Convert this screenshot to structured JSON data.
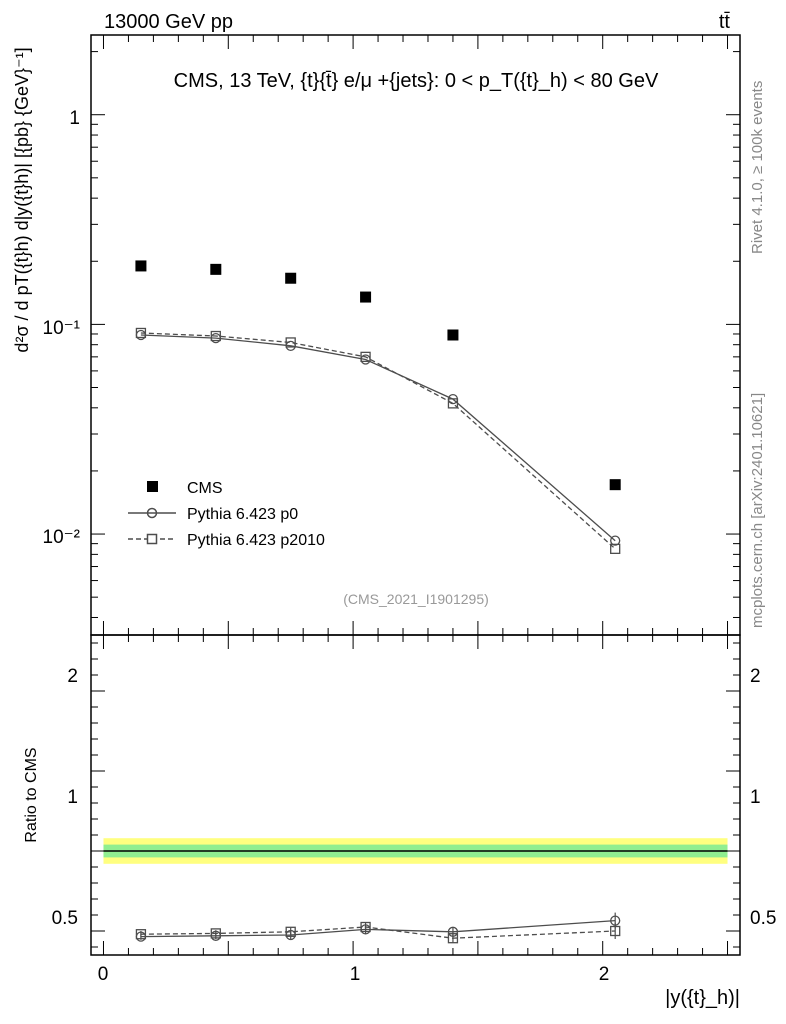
{
  "header": {
    "energy_label": "13000 GeV pp",
    "process_label": "tt̄"
  },
  "side_labels": {
    "rivet": "Rivet 4.1.0, ≥ 100k events",
    "mcplots": "mcplots.cern.ch [arXiv:2401.10621]"
  },
  "chart_data": [
    {
      "type": "scatter",
      "panel": "main",
      "title": "CMS, 13 TeV, {t}{t̄} e/μ +{jets}: 0 <  p_T({t}_h) < 80 GeV",
      "ylabel": "d²σ / d pT({t}h) d|y({t}h)| [{pb} {GeV}⁻¹]",
      "xlabel": "|y({t}_h)|",
      "yscale": "log",
      "xlim": [
        -0.05,
        2.55
      ],
      "ylim": [
        0.0033,
        2.4
      ],
      "y_ticks": [
        "1",
        "10⁻¹",
        "10⁻²"
      ],
      "watermark": "(CMS_2021_I1901295)",
      "legend_position": "bottom-left",
      "x": [
        0.15,
        0.45,
        0.75,
        1.05,
        1.4,
        2.05
      ],
      "series": [
        {
          "name": "CMS",
          "values": [
            0.19,
            0.183,
            0.166,
            0.135,
            0.089,
            0.0172
          ]
        },
        {
          "name": "Pythia 6.423 p0",
          "values": [
            0.089,
            0.086,
            0.079,
            0.068,
            0.044,
            0.0093
          ]
        },
        {
          "name": "Pythia 6.423 p2010",
          "values": [
            0.091,
            0.088,
            0.082,
            0.07,
            0.042,
            0.0085
          ]
        }
      ]
    },
    {
      "type": "line",
      "panel": "ratio",
      "ylabel": "Ratio to CMS",
      "xlabel": "|y({t}_h)|",
      "xlim": [
        -0.05,
        2.55
      ],
      "ylim": [
        0.35,
        2.35
      ],
      "x_ticks": [
        "0",
        "1",
        "2"
      ],
      "y_ticks": [
        "0.5",
        "1",
        "2"
      ],
      "x": [
        0.15,
        0.45,
        0.75,
        1.05,
        1.4,
        2.05
      ],
      "band": {
        "name": "CMS uncertainty",
        "inner": 0.04,
        "outer": 0.08
      },
      "series": [
        {
          "name": "Pythia 6.423 p0",
          "values": [
            0.465,
            0.47,
            0.475,
            0.51,
            0.495,
            0.565
          ]
        },
        {
          "name": "Pythia 6.423 p2010",
          "values": [
            0.48,
            0.485,
            0.495,
            0.525,
            0.455,
            0.5
          ]
        }
      ]
    }
  ],
  "colors": {
    "frame": "#000000",
    "series_grey": "#4d4d4d",
    "band_outer": "#ffff80",
    "band_inner": "#90ee90",
    "watermark": "#999999"
  }
}
